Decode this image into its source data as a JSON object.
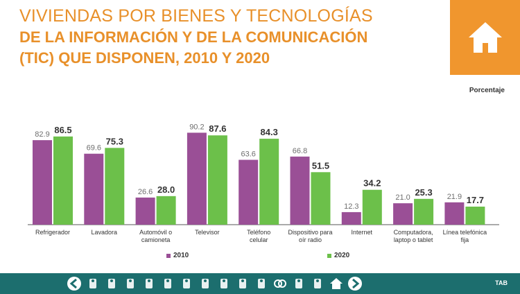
{
  "title": {
    "line1": "VIVIENDAS POR BIENES Y TECNOLOGÍAS",
    "line2": "DE LA INFORMACIÓN Y DE LA COMUNICACIÓN",
    "line3": "(TIC) QUE DISPONEN, 2010 Y 2020"
  },
  "colors": {
    "accent": "#e8902a",
    "series2010": "#9a4f96",
    "series2020": "#6cc04a",
    "footer": "#1c6e6e"
  },
  "icons": {
    "badge": "house-icon",
    "nav": [
      "arrow-left-icon",
      "building-icon",
      "family-icon",
      "person-icon",
      "gear-people-icon",
      "map-icon",
      "compass-icon",
      "wheelchair-icon",
      "children-icon",
      "group-icon",
      "school-icon",
      "rings-icon",
      "worker-icon",
      "museum-icon",
      "home-icon",
      "arrow-right-icon"
    ]
  },
  "footer": {
    "tab_label": "TAB"
  },
  "chart_data": {
    "type": "bar",
    "unit_label": "Porcentaje",
    "categories": [
      "Refrigerador",
      "Lavadora",
      "Automóvil o camioneta",
      "Televisor",
      "Teléfono celular",
      "Dispositivo para oír radio",
      "Internet",
      "Computadora, laptop o tablet",
      "Línea telefónica fija"
    ],
    "category_lines": [
      [
        "Refrigerador"
      ],
      [
        "Lavadora"
      ],
      [
        "Automóvil o",
        "camioneta"
      ],
      [
        "Televisor"
      ],
      [
        "Teléfono",
        "celular"
      ],
      [
        "Dispositivo para",
        "oír radio"
      ],
      [
        "Internet"
      ],
      [
        "Computadora,",
        "laptop o tablet"
      ],
      [
        "Línea telefónica",
        "fija"
      ]
    ],
    "series": [
      {
        "name": "2010",
        "values": [
          82.9,
          69.6,
          26.6,
          90.2,
          63.6,
          66.8,
          12.3,
          21.0,
          21.9
        ]
      },
      {
        "name": "2020",
        "values": [
          86.5,
          75.3,
          28.0,
          87.6,
          84.3,
          51.5,
          34.2,
          25.3,
          17.7
        ]
      }
    ],
    "value_labels": [
      [
        "82.9",
        "69.6",
        "26.6",
        "90.2",
        "63.6",
        "66.8",
        "12.3",
        "21.0",
        "21.9"
      ],
      [
        "86.5",
        "75.3",
        "28.0",
        "87.6",
        "84.3",
        "51.5",
        "34.2",
        "25.3",
        "17.7"
      ]
    ],
    "ylim": [
      0,
      100
    ],
    "legend": [
      "2010",
      "2020"
    ],
    "legend_position": "bottom"
  }
}
